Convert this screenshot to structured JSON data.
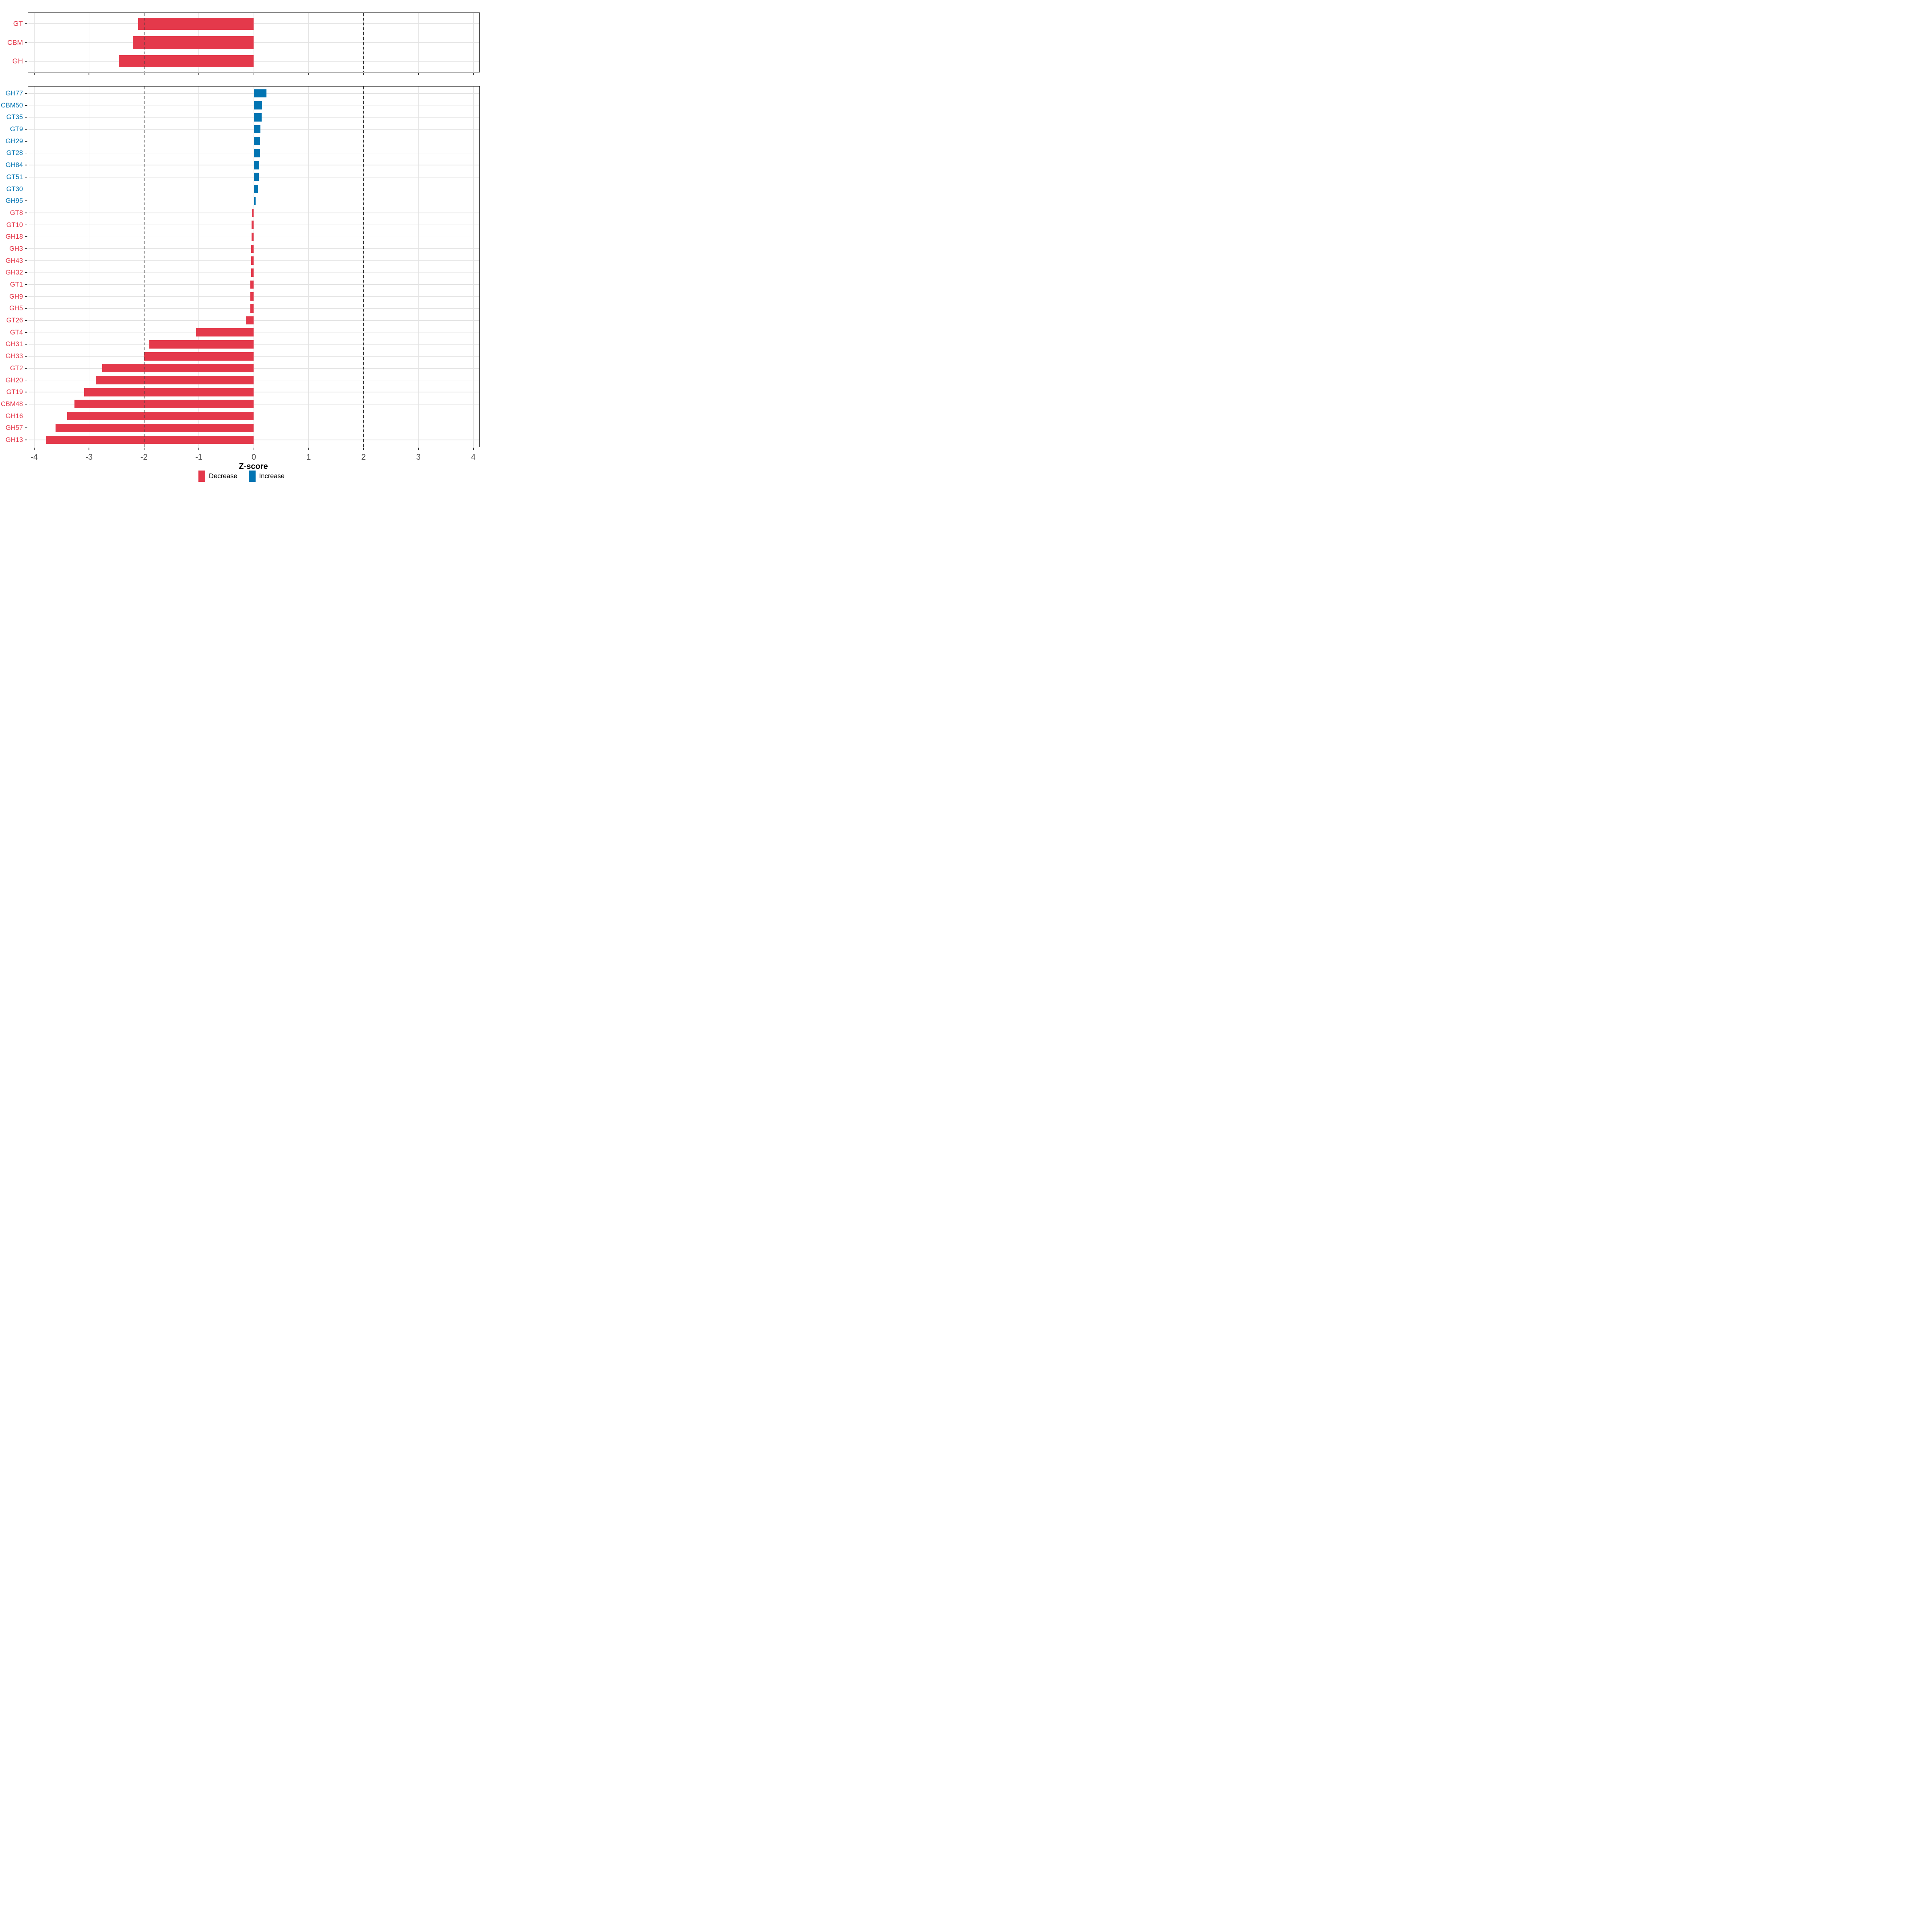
{
  "axis": {
    "title": "Z-score",
    "tick_values": [
      -4,
      -3,
      -2,
      -1,
      0,
      1,
      2,
      3,
      4
    ],
    "tick_labels": [
      "-4",
      "-3",
      "-2",
      "-1",
      "0",
      "1",
      "2",
      "3",
      "4"
    ],
    "xlim": [
      -4.11,
      4.11
    ],
    "reference_lines": [
      -2,
      2
    ],
    "grid": true
  },
  "colors": {
    "decrease": "#E4394B",
    "increase": "#0274B2",
    "grid": "#E3E3E3",
    "axis_text": "#4D4D4D",
    "panel_border": "#333333",
    "reference_line": "#3F3F3F"
  },
  "legend": {
    "position": "bottom",
    "items": [
      {
        "label": "Decrease",
        "color": "#E4394B",
        "direction": "decrease"
      },
      {
        "label": "Increase",
        "color": "#0274B2",
        "direction": "increase"
      }
    ]
  },
  "chart_data": [
    {
      "type": "bar",
      "orientation": "horizontal",
      "panel": "cazyme-classes",
      "categories": [
        "GT",
        "CBM",
        "GH"
      ],
      "values": [
        -2.11,
        -2.2,
        -2.46
      ],
      "directions": [
        "decrease",
        "decrease",
        "decrease"
      ]
    },
    {
      "type": "bar",
      "orientation": "horizontal",
      "panel": "cazyme-families",
      "categories": [
        "GH77",
        "CBM50",
        "GT35",
        "GT9",
        "GH29",
        "GT28",
        "GH84",
        "GT51",
        "GT30",
        "GH95",
        "GT8",
        "GT10",
        "GH18",
        "GH3",
        "GH43",
        "GH32",
        "GT1",
        "GH9",
        "GH5",
        "GT26",
        "GT4",
        "GH31",
        "GH33",
        "GT2",
        "GH20",
        "GT19",
        "CBM48",
        "GH16",
        "GH57",
        "GH13"
      ],
      "values": [
        0.23,
        0.15,
        0.14,
        0.12,
        0.11,
        0.11,
        0.1,
        0.09,
        0.08,
        0.03,
        -0.03,
        -0.04,
        -0.04,
        -0.05,
        -0.05,
        -0.05,
        -0.06,
        -0.06,
        -0.06,
        -0.14,
        -1.05,
        -1.9,
        -2.0,
        -2.76,
        -2.88,
        -3.09,
        -3.27,
        -3.4,
        -3.61,
        -3.78
      ],
      "directions": [
        "increase",
        "increase",
        "increase",
        "increase",
        "increase",
        "increase",
        "increase",
        "increase",
        "increase",
        "increase",
        "decrease",
        "decrease",
        "decrease",
        "decrease",
        "decrease",
        "decrease",
        "decrease",
        "decrease",
        "decrease",
        "decrease",
        "decrease",
        "decrease",
        "decrease",
        "decrease",
        "decrease",
        "decrease",
        "decrease",
        "decrease",
        "decrease",
        "decrease"
      ]
    }
  ]
}
